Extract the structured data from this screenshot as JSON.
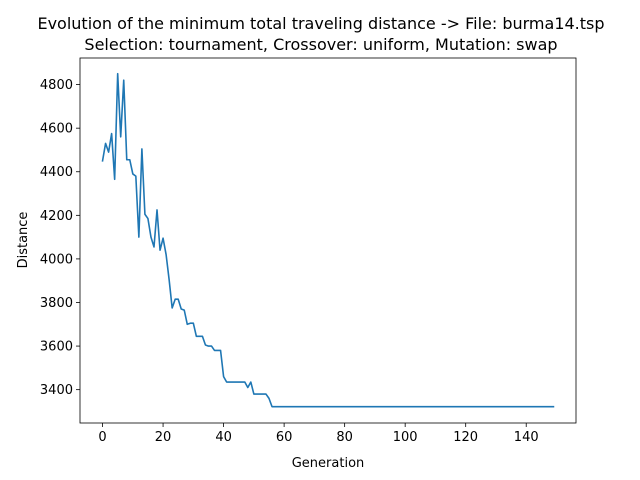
{
  "chart_data": {
    "type": "line",
    "title": "Evolution of the minimum total traveling distance -> File: burma14.tsp",
    "subtitle": "Selection: tournament, Crossover: uniform, Mutation: swap",
    "xlabel": "Generation",
    "ylabel": "Distance",
    "xlim": [
      -7.45,
      156.45
    ],
    "ylim": [
      3247,
      4922
    ],
    "xticks": [
      0,
      20,
      40,
      60,
      80,
      100,
      120,
      140
    ],
    "yticks": [
      3400,
      3600,
      3800,
      4000,
      4200,
      4400,
      4600,
      4800
    ],
    "grid": false,
    "line_color": "#1f77b4",
    "series": [
      {
        "x": [
          0,
          1,
          2,
          3,
          4,
          5,
          6,
          7,
          8,
          9,
          10,
          11,
          12,
          13,
          14,
          15,
          16,
          17,
          18,
          19,
          20,
          21,
          22,
          23,
          24,
          25,
          26,
          27,
          28,
          29,
          30,
          31,
          32,
          33,
          34,
          35,
          36,
          37,
          38,
          39,
          40,
          41,
          42,
          43,
          44,
          45,
          46,
          47,
          48,
          49,
          50,
          51,
          52,
          53,
          54,
          55,
          56,
          149
        ],
        "values": [
          4450,
          4530,
          4490,
          4575,
          4365,
          4850,
          4560,
          4820,
          4455,
          4455,
          4390,
          4380,
          4100,
          4505,
          4205,
          4185,
          4100,
          4055,
          4225,
          4040,
          4095,
          4020,
          3905,
          3775,
          3815,
          3815,
          3770,
          3765,
          3700,
          3705,
          3705,
          3645,
          3645,
          3645,
          3605,
          3600,
          3600,
          3580,
          3580,
          3580,
          3460,
          3435,
          3435,
          3435,
          3435,
          3435,
          3435,
          3435,
          3410,
          3435,
          3380,
          3380,
          3380,
          3380,
          3380,
          3360,
          3322,
          3322
        ]
      }
    ]
  }
}
